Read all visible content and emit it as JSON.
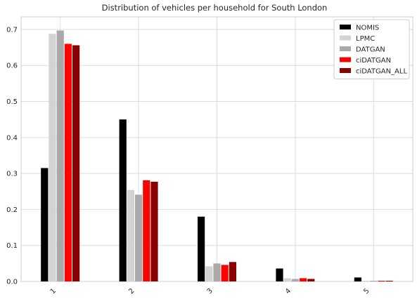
{
  "chart_data": {
    "type": "bar",
    "title": "Distribution of vehicles per household for South London",
    "xlabel": "",
    "ylabel": "",
    "categories": [
      "1",
      "2",
      "3",
      "4",
      "5"
    ],
    "ylim": [
      0,
      0.735
    ],
    "yticks": [
      0.0,
      0.1,
      0.2,
      0.3,
      0.4,
      0.5,
      0.6,
      0.7
    ],
    "ytick_labels": [
      "0.0",
      "0.1",
      "0.2",
      "0.3",
      "0.4",
      "0.5",
      "0.6",
      "0.7"
    ],
    "grid": true,
    "legend_position": "top-right",
    "xtick_rotation": 45,
    "series": [
      {
        "name": "NOMIS",
        "color": "#000000",
        "values": [
          0.315,
          0.45,
          0.18,
          0.036,
          0.011
        ]
      },
      {
        "name": "LPMC",
        "color": "#d3d3d3",
        "values": [
          0.688,
          0.254,
          0.042,
          0.009,
          0.002
        ]
      },
      {
        "name": "DATGAN",
        "color": "#a9a9a9",
        "values": [
          0.697,
          0.241,
          0.05,
          0.007,
          0.002
        ]
      },
      {
        "name": "ciDATGAN",
        "color": "#ff0000",
        "values": [
          0.66,
          0.281,
          0.046,
          0.009,
          0.002
        ]
      },
      {
        "name": "ciDATGAN_ALL",
        "color": "#8b0000",
        "values": [
          0.656,
          0.277,
          0.054,
          0.007,
          0.002
        ]
      }
    ]
  }
}
